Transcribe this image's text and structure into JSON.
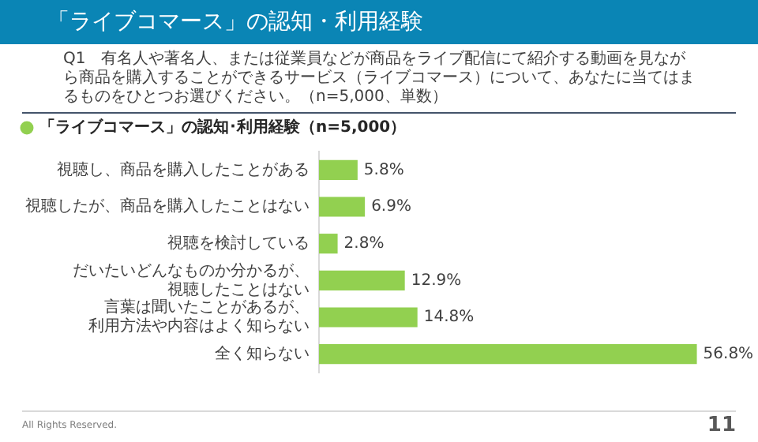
{
  "chart_data": {
    "type": "bar",
    "orientation": "horizontal",
    "title": "「ライブコマース」の認知・利用経験",
    "subtitle": "Q1　有名人や著名人、または従業員などが商品をライブ配信にて紹介する動画を見ながら商品を購入することができるサービス（ライブコマース）について、あなたに当てはまるものをひとつお選びください。（n=5,000、単数）",
    "categories": [
      "視聴し、商品を購入したことがある",
      "視聴したが、商品を購入したことはない",
      "視聴を検討している",
      "だいたいどんなものか分かるが、視聴したことはない",
      "言葉は聞いたことがあるが、利用方法や内容はよく知らない",
      "全く知らない"
    ],
    "series": [
      {
        "name": "「ライブコマース」の認知･利用経験（n=5,000）",
        "color": "#92d050",
        "values": [
          5.8,
          6.9,
          2.8,
          12.9,
          14.8,
          56.8
        ],
        "value_labels": [
          "5.8%",
          "6.9%",
          "2.8%",
          "12.9%",
          "14.8%",
          "56.8%"
        ]
      }
    ],
    "legend": "top left",
    "grid": false,
    "tick_labels": "y",
    "annotations": [
      "All Rights Reserved.",
      "11"
    ]
  }
}
